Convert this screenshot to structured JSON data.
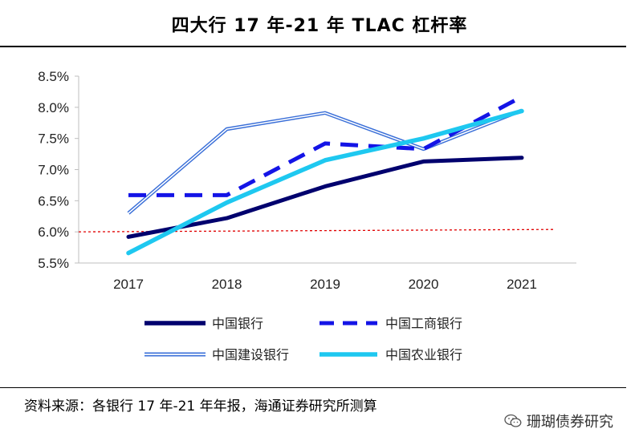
{
  "title": "四大行 17 年-21 年 TLAC 杠杆率",
  "source": "资料来源：各银行 17 年-21 年年报，海通证券研究所测算",
  "watermark": "珊瑚债券研究",
  "chart_data": {
    "type": "line",
    "title": "四大行 17 年-21 年 TLAC 杠杆率",
    "categories": [
      "2017",
      "2018",
      "2019",
      "2020",
      "2021"
    ],
    "ylim": [
      0.055,
      0.085
    ],
    "yticks": [
      "8.5%",
      "8.0%",
      "7.5%",
      "7.0%",
      "6.5%",
      "6.0%",
      "5.5%"
    ],
    "ytick_values": [
      0.085,
      0.08,
      0.075,
      0.07,
      0.065,
      0.06,
      0.055
    ],
    "reference_line": 0.06,
    "reference_color": "#e00000",
    "series": [
      {
        "name": "中国银行",
        "values": [
          0.0592,
          0.0622,
          0.0673,
          0.0713,
          0.0719
        ],
        "color": "#00006e",
        "style": "solid"
      },
      {
        "name": "中国工商银行",
        "values": [
          0.0659,
          0.0659,
          0.0742,
          0.0733,
          0.0817
        ],
        "color": "#1414e6",
        "style": "dashed"
      },
      {
        "name": "中国建设银行",
        "values": [
          0.063,
          0.0765,
          0.0791,
          0.0733,
          0.0795
        ],
        "color": "#3a6fd8",
        "style": "double"
      },
      {
        "name": "中国农业银行",
        "values": [
          0.0566,
          0.0647,
          0.0715,
          0.075,
          0.0794
        ],
        "color": "#1ec8f0",
        "style": "thick"
      }
    ]
  }
}
